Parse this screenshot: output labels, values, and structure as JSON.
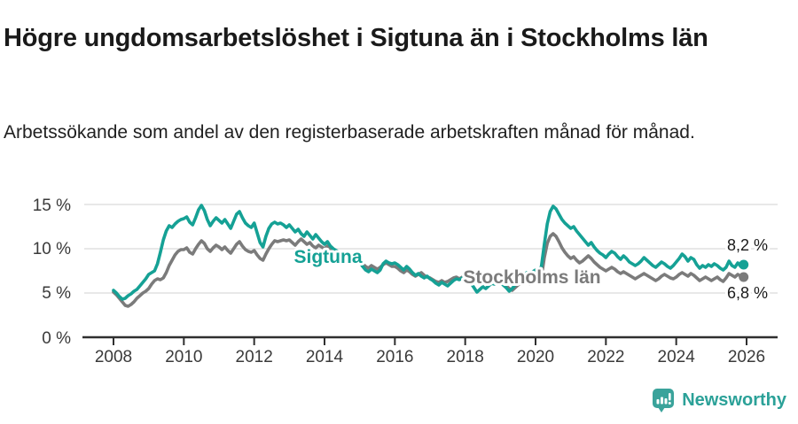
{
  "header": {
    "title": "Högre ungdomsarbetslöshet i Sigtuna än i Stockholms län",
    "subtitle": "Arbetssökande som andel av den registerbaserade arbetskraften månad för månad."
  },
  "chart_data": {
    "type": "line",
    "unit": "%",
    "frequency": "monthly",
    "x_start_year": 2008,
    "x_end_year": 2026,
    "ylim": [
      0,
      16.5
    ],
    "grid": "horizontal",
    "x_tick_labels": [
      "2008",
      "2010",
      "2012",
      "2014",
      "2016",
      "2018",
      "2020",
      "2022",
      "2024",
      "2026"
    ],
    "y_tick_labels": [
      "0 %",
      "5 %",
      "10 %",
      "15 %"
    ],
    "y_tick_values": [
      0,
      5,
      10,
      15
    ],
    "grid_values": [
      5,
      10,
      15
    ],
    "series": [
      {
        "name": "Stockholms län",
        "color": "#7b7b7b",
        "end_label": "6,8 %",
        "end_value": 6.8,
        "values": [
          5.1,
          4.8,
          4.4,
          4.0,
          3.6,
          3.5,
          3.7,
          4.0,
          4.4,
          4.7,
          5.0,
          5.2,
          5.5,
          6.0,
          6.4,
          6.6,
          6.5,
          6.7,
          7.3,
          8.1,
          8.7,
          9.3,
          9.7,
          9.9,
          9.9,
          10.1,
          9.6,
          9.4,
          10.0,
          10.5,
          10.9,
          10.6,
          10.0,
          9.7,
          10.1,
          10.4,
          10.2,
          9.9,
          10.2,
          9.8,
          9.5,
          10.0,
          10.5,
          10.8,
          10.3,
          9.9,
          9.7,
          9.6,
          9.8,
          9.3,
          8.9,
          8.7,
          9.4,
          10.0,
          10.5,
          10.9,
          10.8,
          10.9,
          11.0,
          10.9,
          11.0,
          10.7,
          10.4,
          10.8,
          11.1,
          10.8,
          10.5,
          10.7,
          10.3,
          10.1,
          10.4,
          10.2,
          10.0,
          10.3,
          9.9,
          9.6,
          9.4,
          9.2,
          9.1,
          8.9,
          8.8,
          8.7,
          8.6,
          8.5,
          8.6,
          8.3,
          8.0,
          7.8,
          8.1,
          7.9,
          7.7,
          7.9,
          8.2,
          8.4,
          8.2,
          8.0,
          8.0,
          7.8,
          7.5,
          7.3,
          7.6,
          7.4,
          7.1,
          6.9,
          7.1,
          7.3,
          7.0,
          6.8,
          6.7,
          6.5,
          6.3,
          6.2,
          6.4,
          6.2,
          6.3,
          6.5,
          6.7,
          6.8,
          6.6,
          6.8,
          6.9,
          6.7,
          6.4,
          6.2,
          6.4,
          6.2,
          6.0,
          6.2,
          6.4,
          6.3,
          6.1,
          6.3,
          6.2,
          6.0,
          5.8,
          5.5,
          5.3,
          5.6,
          5.9,
          6.1,
          6.3,
          6.2,
          6.0,
          6.2,
          6.3,
          6.2,
          6.8,
          9.0,
          10.6,
          11.4,
          11.7,
          11.4,
          10.8,
          10.1,
          9.6,
          9.2,
          8.9,
          9.1,
          8.7,
          8.4,
          8.6,
          8.9,
          9.2,
          8.9,
          8.5,
          8.2,
          7.9,
          7.7,
          7.5,
          7.7,
          7.9,
          7.7,
          7.4,
          7.2,
          7.4,
          7.2,
          7.0,
          6.8,
          6.6,
          6.8,
          7.0,
          7.2,
          7.0,
          6.8,
          6.6,
          6.4,
          6.6,
          6.9,
          7.1,
          6.9,
          6.7,
          6.6,
          6.8,
          7.1,
          7.3,
          7.1,
          6.9,
          7.2,
          7.0,
          6.7,
          6.4,
          6.6,
          6.8,
          6.6,
          6.4,
          6.6,
          6.8,
          6.5,
          6.3,
          6.7,
          7.2,
          7.0,
          6.8,
          7.1,
          6.9,
          6.8
        ]
      },
      {
        "name": "Sigtuna",
        "color": "#15a195",
        "end_label": "8,2 %",
        "end_value": 8.2,
        "values": [
          5.3,
          5.0,
          4.6,
          4.3,
          4.4,
          4.7,
          4.9,
          5.2,
          5.4,
          5.8,
          6.2,
          6.6,
          7.1,
          7.3,
          7.5,
          8.3,
          9.6,
          11.0,
          12.0,
          12.6,
          12.4,
          12.8,
          13.1,
          13.3,
          13.4,
          13.6,
          13.0,
          12.7,
          13.5,
          14.4,
          14.9,
          14.3,
          13.3,
          12.6,
          13.1,
          13.5,
          13.2,
          12.9,
          13.3,
          12.8,
          12.3,
          13.1,
          13.9,
          14.2,
          13.5,
          12.9,
          12.6,
          12.4,
          12.9,
          11.8,
          10.7,
          10.2,
          11.4,
          12.3,
          12.8,
          13.0,
          12.8,
          12.9,
          12.7,
          12.4,
          12.7,
          12.3,
          11.9,
          12.2,
          11.7,
          11.4,
          11.9,
          11.5,
          11.1,
          11.6,
          11.2,
          10.8,
          10.5,
          10.8,
          10.3,
          10.0,
          9.8,
          9.6,
          9.5,
          9.3,
          9.1,
          9.0,
          8.8,
          8.7,
          8.5,
          8.0,
          7.6,
          7.4,
          7.7,
          7.5,
          7.3,
          7.6,
          8.3,
          8.6,
          8.4,
          8.3,
          8.4,
          8.2,
          7.9,
          7.6,
          8.0,
          7.7,
          7.3,
          7.0,
          7.2,
          6.9,
          6.7,
          6.9,
          6.6,
          6.4,
          6.1,
          5.9,
          6.2,
          6.0,
          5.8,
          6.1,
          6.4,
          6.6,
          6.5,
          6.7,
          6.8,
          6.5,
          6.1,
          5.6,
          5.1,
          5.4,
          5.7,
          5.5,
          5.8,
          6.1,
          6.0,
          6.2,
          6.1,
          5.9,
          5.6,
          5.2,
          5.5,
          5.9,
          6.3,
          6.6,
          7.0,
          7.3,
          7.1,
          7.4,
          7.6,
          7.5,
          8.0,
          10.5,
          12.8,
          14.2,
          14.8,
          14.5,
          13.9,
          13.3,
          12.9,
          12.6,
          12.3,
          12.5,
          12.0,
          11.6,
          11.2,
          10.8,
          10.4,
          10.7,
          10.2,
          9.8,
          9.5,
          9.3,
          9.0,
          9.4,
          9.7,
          9.5,
          9.1,
          8.8,
          9.2,
          8.9,
          8.5,
          8.3,
          8.1,
          8.3,
          8.6,
          9.0,
          8.7,
          8.4,
          8.1,
          7.9,
          8.2,
          8.5,
          8.3,
          8.0,
          7.8,
          8.1,
          8.5,
          8.9,
          9.4,
          9.1,
          8.6,
          9.0,
          8.8,
          8.2,
          7.8,
          8.1,
          7.9,
          8.2,
          8.0,
          8.3,
          8.1,
          7.8,
          7.6,
          7.9,
          8.6,
          8.1,
          7.9,
          8.4,
          8.0,
          8.2
        ]
      }
    ]
  },
  "footer": {
    "brand": "Newsworthy"
  },
  "colors": {
    "sigtuna": "#15a195",
    "stockholm": "#7b7b7b",
    "logo": "#2ba198",
    "grid": "#d9d9d9",
    "axis": "#2f2f2f",
    "text": "#1a1a1a"
  }
}
